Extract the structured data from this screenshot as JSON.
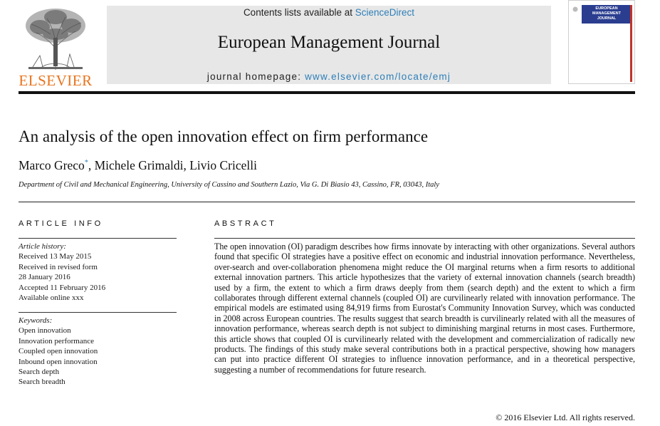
{
  "header": {
    "contents_prefix": "Contents lists available at ",
    "contents_link": "ScienceDirect",
    "journal_title": "European Management Journal",
    "homepage_prefix": "journal homepage: ",
    "homepage_url": "www.elsevier.com/locate/emj",
    "publisher": "ELSEVIER",
    "cover_title": "EUROPEAN\nMANAGEMENT\nJOURNAL"
  },
  "article": {
    "title": "An analysis of the open innovation effect on firm performance",
    "authors": [
      "Marco Greco",
      "Michele Grimaldi",
      "Livio Cricelli"
    ],
    "corresponding_mark": "*",
    "affiliation": "Department of Civil and Mechanical Engineering, University of Cassino and Southern Lazio, Via G. Di Biasio 43, Cassino, FR, 03043, Italy"
  },
  "article_info": {
    "heading": "ARTICLE INFO",
    "history_label": "Article history:",
    "history": [
      "Received 13 May 2015",
      "Received in revised form",
      "28 January 2016",
      "Accepted 11 February 2016",
      "Available online xxx"
    ],
    "keywords_label": "Keywords:",
    "keywords": [
      "Open innovation",
      "Innovation performance",
      "Coupled open innovation",
      "Inbound open innovation",
      "Search depth",
      "Search breadth"
    ]
  },
  "abstract": {
    "heading": "ABSTRACT",
    "text": "The open innovation (OI) paradigm describes how firms innovate by interacting with other organizations. Several authors found that specific OI strategies have a positive effect on economic and industrial innovation performance. Nevertheless, over-search and over-collaboration phenomena might reduce the OI marginal returns when a firm resorts to additional external innovation partners. This article hypothesizes that the variety of external innovation channels (search breadth) used by a firm, the extent to which a firm draws deeply from them (search depth) and the extent to which a firm collaborates through different external channels (coupled OI) are curvilinearly related with innovation performance. The empirical models are estimated using 84,919 firms from Eurostat's Community Innovation Survey, which was conducted in 2008 across European countries. The results suggest that search breadth is curvilinearly related with all the measures of innovation performance, whereas search depth is not subject to diminishing marginal returns in most cases. Furthermore, this article shows that coupled OI is curvilinearly related with the development and commercialization of radically new products. The findings of this study make several contributions both in a practical perspective, showing how managers can put into practice different OI strategies to influence innovation performance, and in a theoretical perspective, suggesting a number of recommendations for future research.",
    "copyright": "© 2016 Elsevier Ltd. All rights reserved."
  },
  "colors": {
    "publisher_orange": "#e8731c",
    "link_blue": "#2e7fb8",
    "banner_gray": "#e7e7e7",
    "cover_blue": "#2a3d8f"
  },
  "icons": {
    "logo": "elsevier-tree-icon",
    "cover": "journal-cover-icon"
  }
}
